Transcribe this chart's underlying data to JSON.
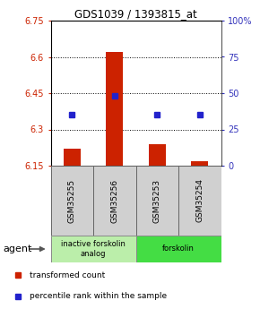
{
  "title": "GDS1039 / 1393815_at",
  "samples": [
    "GSM35255",
    "GSM35256",
    "GSM35253",
    "GSM35254"
  ],
  "bar_values": [
    6.22,
    6.62,
    6.24,
    6.17
  ],
  "bar_base": 6.15,
  "percentile_values": [
    35,
    48,
    35,
    35
  ],
  "ylim_left": [
    6.15,
    6.75
  ],
  "ylim_right": [
    0,
    100
  ],
  "yticks_left": [
    6.15,
    6.3,
    6.45,
    6.6,
    6.75
  ],
  "yticks_right": [
    0,
    25,
    50,
    75,
    100
  ],
  "ytick_labels_left": [
    "6.15",
    "6.3",
    "6.45",
    "6.6",
    "6.75"
  ],
  "ytick_labels_right": [
    "0",
    "25",
    "50",
    "75",
    "100%"
  ],
  "hlines": [
    6.3,
    6.45,
    6.6
  ],
  "bar_color": "#cc2200",
  "percentile_color": "#2222cc",
  "bar_width": 0.4,
  "agent_label": "agent",
  "groups": [
    {
      "label": "inactive forskolin\nanalog",
      "indices": [
        0,
        1
      ],
      "color": "#bbeeaa"
    },
    {
      "label": "forskolin",
      "indices": [
        2,
        3
      ],
      "color": "#44dd44"
    }
  ],
  "legend_items": [
    {
      "color": "#cc2200",
      "label": "transformed count"
    },
    {
      "color": "#2222cc",
      "label": "percentile rank within the sample"
    }
  ],
  "tick_color_left": "#cc2200",
  "tick_color_right": "#3333bb",
  "sample_box_color": "#d0d0d0",
  "sample_box_edge": "#666666"
}
